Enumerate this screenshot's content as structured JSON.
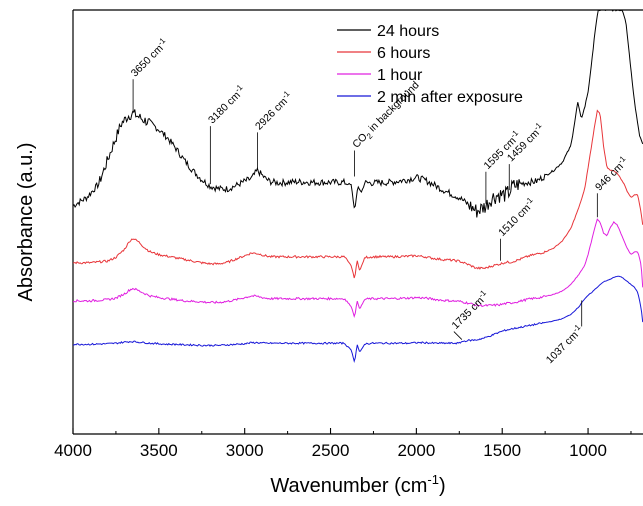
{
  "chart_data": {
    "type": "line",
    "xlabel": "Wavenumber (cm",
    "xlabel_sup": "-1",
    "xlabel_end": ")",
    "ylabel": "Absorbance (a.u.)",
    "xlim": [
      4000,
      680
    ],
    "x_reversed": true,
    "xticks": [
      4000,
      3500,
      3000,
      2500,
      2000,
      1500,
      1000
    ],
    "y_tick_labels_shown": false,
    "grid": false,
    "legend_position": "top-center",
    "series": [
      {
        "name": "24 hours",
        "color": "#000000",
        "x": [
          4000,
          3920,
          3850,
          3780,
          3720,
          3680,
          3650,
          3600,
          3550,
          3500,
          3450,
          3400,
          3350,
          3300,
          3250,
          3200,
          3150,
          3100,
          3050,
          3000,
          2960,
          2926,
          2880,
          2850,
          2800,
          2700,
          2600,
          2500,
          2420,
          2380,
          2360,
          2340,
          2320,
          2300,
          2250,
          2150,
          2050,
          2000,
          1950,
          1900,
          1850,
          1800,
          1750,
          1700,
          1650,
          1620,
          1595,
          1560,
          1520,
          1480,
          1459,
          1440,
          1400,
          1350,
          1300,
          1250,
          1200,
          1150,
          1100,
          1080,
          1060,
          1040,
          1020,
          1000,
          980,
          960,
          940,
          920,
          900,
          880,
          860,
          840,
          820,
          800,
          780,
          760,
          740,
          720,
          700,
          680
        ],
        "y": [
          0.64,
          0.655,
          0.68,
          0.74,
          0.79,
          0.805,
          0.81,
          0.8,
          0.792,
          0.78,
          0.765,
          0.745,
          0.723,
          0.704,
          0.688,
          0.676,
          0.671,
          0.671,
          0.677,
          0.685,
          0.69,
          0.705,
          0.69,
          0.684,
          0.682,
          0.684,
          0.683,
          0.683,
          0.683,
          0.678,
          0.632,
          0.675,
          0.665,
          0.682,
          0.682,
          0.683,
          0.688,
          0.692,
          0.687,
          0.679,
          0.67,
          0.662,
          0.655,
          0.643,
          0.63,
          0.635,
          0.64,
          0.655,
          0.66,
          0.66,
          0.665,
          0.675,
          0.68,
          0.683,
          0.685,
          0.695,
          0.705,
          0.72,
          0.75,
          0.79,
          0.83,
          0.8,
          0.82,
          0.85,
          0.9,
          0.96,
          1.0,
          1.0,
          1.0,
          1.0,
          1.0,
          1.0,
          1.0,
          1.0,
          0.98,
          0.92,
          0.86,
          0.81,
          0.77,
          0.75
        ]
      },
      {
        "name": "6 hours",
        "color": "#e8363a",
        "x": [
          4000,
          3900,
          3800,
          3750,
          3700,
          3670,
          3650,
          3620,
          3580,
          3550,
          3500,
          3450,
          3400,
          3350,
          3300,
          3250,
          3200,
          3150,
          3100,
          3050,
          3000,
          2960,
          2926,
          2880,
          2850,
          2800,
          2700,
          2600,
          2500,
          2420,
          2380,
          2360,
          2345,
          2330,
          2300,
          2250,
          2150,
          2050,
          2000,
          1950,
          1900,
          1850,
          1800,
          1750,
          1700,
          1650,
          1600,
          1550,
          1510,
          1480,
          1450,
          1400,
          1350,
          1300,
          1250,
          1200,
          1150,
          1100,
          1050,
          1020,
          1000,
          980,
          960,
          946,
          930,
          910,
          890,
          870,
          850,
          830,
          810,
          790,
          770,
          750,
          730,
          710,
          690,
          680
        ],
        "y": [
          0.535,
          0.535,
          0.538,
          0.545,
          0.56,
          0.575,
          0.58,
          0.574,
          0.562,
          0.555,
          0.55,
          0.547,
          0.544,
          0.541,
          0.538,
          0.535,
          0.533,
          0.533,
          0.536,
          0.542,
          0.548,
          0.553,
          0.552,
          0.548,
          0.546,
          0.546,
          0.546,
          0.546,
          0.546,
          0.546,
          0.53,
          0.505,
          0.54,
          0.52,
          0.545,
          0.546,
          0.546,
          0.547,
          0.548,
          0.546,
          0.543,
          0.541,
          0.54,
          0.538,
          0.532,
          0.525,
          0.525,
          0.53,
          0.533,
          0.536,
          0.536,
          0.541,
          0.547,
          0.551,
          0.555,
          0.562,
          0.575,
          0.598,
          0.64,
          0.67,
          0.71,
          0.75,
          0.79,
          0.815,
          0.81,
          0.75,
          0.71,
          0.705,
          0.704,
          0.7,
          0.69,
          0.68,
          0.665,
          0.655,
          0.66,
          0.66,
          0.625,
          0.6
        ]
      },
      {
        "name": "1 hour",
        "color": "#e020e0",
        "x": [
          4000,
          3900,
          3800,
          3750,
          3700,
          3670,
          3650,
          3620,
          3580,
          3550,
          3500,
          3450,
          3400,
          3350,
          3300,
          3250,
          3200,
          3150,
          3100,
          3050,
          3000,
          2960,
          2926,
          2880,
          2850,
          2800,
          2700,
          2600,
          2500,
          2420,
          2380,
          2360,
          2345,
          2330,
          2300,
          2250,
          2150,
          2050,
          2000,
          1950,
          1900,
          1850,
          1800,
          1750,
          1700,
          1650,
          1600,
          1550,
          1510,
          1480,
          1450,
          1400,
          1350,
          1300,
          1250,
          1200,
          1150,
          1100,
          1050,
          1020,
          1000,
          980,
          960,
          946,
          930,
          910,
          890,
          870,
          850,
          830,
          810,
          790,
          770,
          750,
          730,
          710,
          690,
          680
        ],
        "y": [
          0.465,
          0.465,
          0.467,
          0.47,
          0.478,
          0.485,
          0.488,
          0.484,
          0.478,
          0.474,
          0.471,
          0.469,
          0.467,
          0.465,
          0.464,
          0.463,
          0.462,
          0.462,
          0.464,
          0.467,
          0.471,
          0.474,
          0.473,
          0.47,
          0.469,
          0.469,
          0.469,
          0.469,
          0.469,
          0.469,
          0.455,
          0.435,
          0.465,
          0.45,
          0.468,
          0.469,
          0.469,
          0.47,
          0.471,
          0.47,
          0.468,
          0.466,
          0.465,
          0.464,
          0.461,
          0.457,
          0.456,
          0.457,
          0.458,
          0.46,
          0.461,
          0.464,
          0.468,
          0.47,
          0.473,
          0.477,
          0.483,
          0.495,
          0.515,
          0.53,
          0.55,
          0.575,
          0.6,
          0.615,
          0.61,
          0.59,
          0.585,
          0.6,
          0.61,
          0.605,
          0.59,
          0.575,
          0.56,
          0.55,
          0.555,
          0.555,
          0.53,
          0.48
        ]
      },
      {
        "name": "2 min after exposure",
        "color": "#1818d8",
        "x": [
          4000,
          3900,
          3800,
          3750,
          3700,
          3670,
          3650,
          3620,
          3580,
          3550,
          3500,
          3450,
          3400,
          3350,
          3300,
          3250,
          3200,
          3150,
          3100,
          3050,
          3000,
          2960,
          2926,
          2880,
          2850,
          2800,
          2700,
          2600,
          2500,
          2420,
          2380,
          2360,
          2345,
          2330,
          2300,
          2250,
          2150,
          2050,
          2000,
          1950,
          1900,
          1850,
          1800,
          1750,
          1735,
          1700,
          1650,
          1600,
          1550,
          1510,
          1480,
          1450,
          1400,
          1350,
          1300,
          1250,
          1200,
          1150,
          1100,
          1050,
          1037,
          1020,
          1000,
          980,
          960,
          946,
          930,
          910,
          890,
          870,
          850,
          830,
          810,
          790,
          770,
          750,
          730,
          710,
          690,
          680
        ],
        "y": [
          0.385,
          0.385,
          0.386,
          0.387,
          0.389,
          0.39,
          0.39,
          0.389,
          0.388,
          0.387,
          0.386,
          0.385,
          0.385,
          0.384,
          0.384,
          0.383,
          0.383,
          0.383,
          0.384,
          0.385,
          0.386,
          0.388,
          0.388,
          0.387,
          0.387,
          0.387,
          0.387,
          0.387,
          0.387,
          0.387,
          0.375,
          0.352,
          0.385,
          0.37,
          0.386,
          0.387,
          0.387,
          0.387,
          0.388,
          0.388,
          0.387,
          0.387,
          0.387,
          0.387,
          0.39,
          0.392,
          0.393,
          0.397,
          0.403,
          0.408,
          0.411,
          0.413,
          0.416,
          0.419,
          0.422,
          0.425,
          0.428,
          0.432,
          0.44,
          0.455,
          0.462,
          0.468,
          0.475,
          0.48,
          0.486,
          0.49,
          0.495,
          0.5,
          0.502,
          0.505,
          0.508,
          0.51,
          0.51,
          0.505,
          0.5,
          0.495,
          0.49,
          0.48,
          0.45,
          0.42
        ]
      }
    ],
    "annotations": [
      {
        "text": "3650 cm",
        "sup": "-1",
        "x": 3650,
        "y": 0.81
      },
      {
        "text": "3180 cm",
        "sup": "-1",
        "x": 3200,
        "y": 0.676
      },
      {
        "text": "2926 cm",
        "sup": "-1",
        "x": 2926,
        "y": 0.705
      },
      {
        "text": "CO",
        "sub": "2",
        "text_end": " in background",
        "x": 2360,
        "y": 0.69
      },
      {
        "text": "1595 cm",
        "sup": "-1",
        "x": 1595,
        "y": 0.64
      },
      {
        "text": "1459 cm",
        "sup": "-1",
        "x": 1459,
        "y": 0.665
      },
      {
        "text": "1510 cm",
        "sup": "-1",
        "x": 1510,
        "y": 0.535
      },
      {
        "text": "946 cm",
        "sup": "-1",
        "x": 946,
        "y": 0.615
      },
      {
        "text": "1735 cm",
        "sup": "-1",
        "x": 1735,
        "y": 0.39
      },
      {
        "text": "1037 cm",
        "sup": "-1",
        "x": 1037,
        "y": 0.462
      }
    ]
  }
}
